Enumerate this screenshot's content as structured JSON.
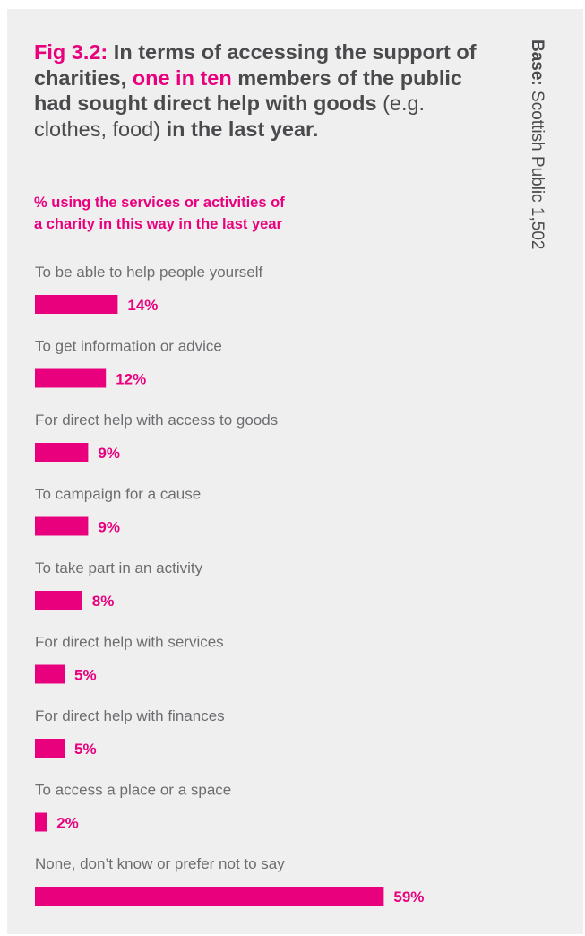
{
  "figure": {
    "label": "Fig 3.2:",
    "title_1": "In terms of accessing the support of charities,",
    "title_highlight": "one in ten",
    "title_2": "members of the public had sought direct help with goods",
    "title_light": "(e.g. clothes, food)",
    "title_3": "in the last year.",
    "subtitle_line1": "% using the services or activities of",
    "subtitle_line2": "a charity in this way in the last year",
    "base_label": "Base:",
    "base_value": "Scottish Public 1,502"
  },
  "colors": {
    "accent": "#e8007d",
    "text": "#6d6d70",
    "background": "#f0eff0"
  },
  "chart_data": {
    "type": "bar",
    "orientation": "horizontal",
    "categories": [
      "To be able to help people yourself",
      "To get information or advice",
      "For direct help with access to goods",
      "To campaign for a cause",
      "To take part in an activity",
      "For direct help with services",
      "For direct help with finances",
      "To access a place or a space",
      "None, don’t know or prefer not to say"
    ],
    "values": [
      14,
      12,
      9,
      9,
      8,
      5,
      5,
      2,
      59
    ],
    "value_labels": [
      "14%",
      "12%",
      "9%",
      "9%",
      "8%",
      "5%",
      "5%",
      "2%",
      "59%"
    ],
    "unit": "%",
    "xlim": [
      0,
      100
    ],
    "grid": false,
    "legend": "none"
  }
}
